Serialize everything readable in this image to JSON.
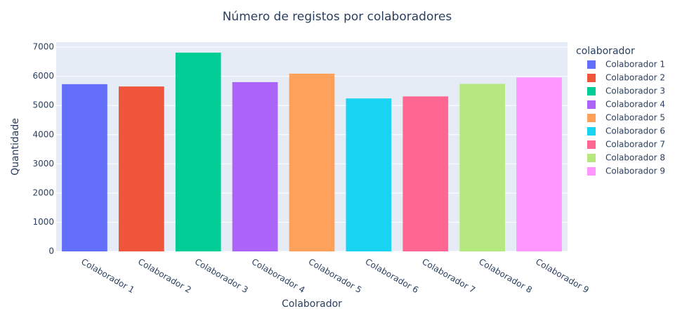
{
  "chart_data": {
    "type": "bar",
    "title": "Número de registos por colaboradores",
    "x_label": "Colaborador",
    "y_label": "Quantidade",
    "legend_title": "colaborador",
    "categories": [
      "Colaborador 1",
      "Colaborador 2",
      "Colaborador 3",
      "Colaborador 4",
      "Colaborador 5",
      "Colaborador 6",
      "Colaborador 7",
      "Colaborador 8",
      "Colaborador 9"
    ],
    "values": [
      5730,
      5650,
      6810,
      5800,
      6090,
      5240,
      5310,
      5740,
      5960
    ],
    "colors": [
      "#636efa",
      "#ef553b",
      "#00cc96",
      "#ab63fa",
      "#ffa15a",
      "#19d3f3",
      "#ff6692",
      "#b6e880",
      "#ff97ff"
    ],
    "ylim": [
      0,
      7170
    ],
    "yticks": [
      0,
      1000,
      2000,
      3000,
      4000,
      5000,
      6000,
      7000
    ],
    "grid": true,
    "legend": "right"
  }
}
